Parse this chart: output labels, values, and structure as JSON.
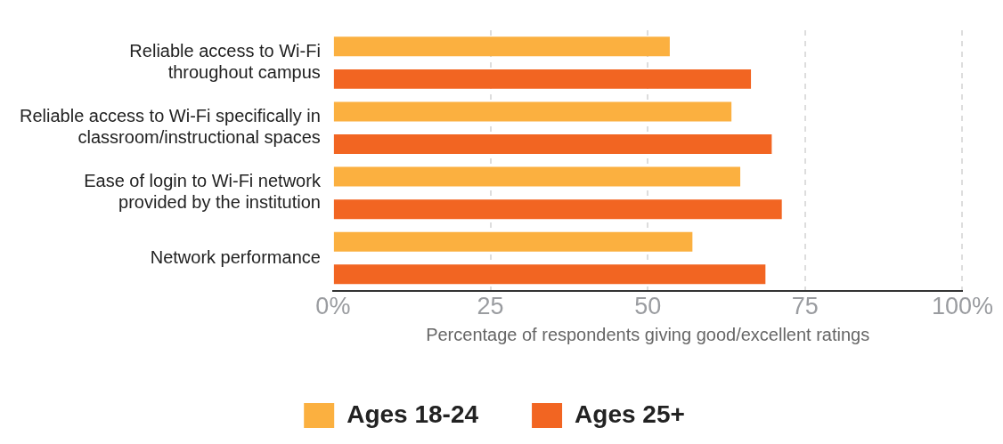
{
  "chart_data": {
    "type": "bar",
    "orientation": "horizontal",
    "xlabel": "Percentage of respondents giving good/excellent ratings",
    "categories": [
      "Reliable access to Wi-Fi\nthroughout campus",
      "Reliable access to Wi-Fi specifically in\nclassroom/instructional spaces",
      "Ease of login to Wi-Fi network\nprovided by the institution",
      "Network performance"
    ],
    "series": [
      {
        "name": "Ages 18-24",
        "color": "#fbb040",
        "values": [
          53.5,
          63.3,
          64.7,
          57.1
        ]
      },
      {
        "name": "Ages 25+",
        "color": "#f26522",
        "values": [
          66.4,
          69.7,
          71.3,
          68.7
        ]
      }
    ],
    "xlim": [
      0,
      100
    ],
    "xticks": [
      {
        "value": 0,
        "label": "0%"
      },
      25,
      50,
      75,
      {
        "value": 100,
        "label": "100%"
      }
    ],
    "grid": "x",
    "legend": "bottom"
  }
}
